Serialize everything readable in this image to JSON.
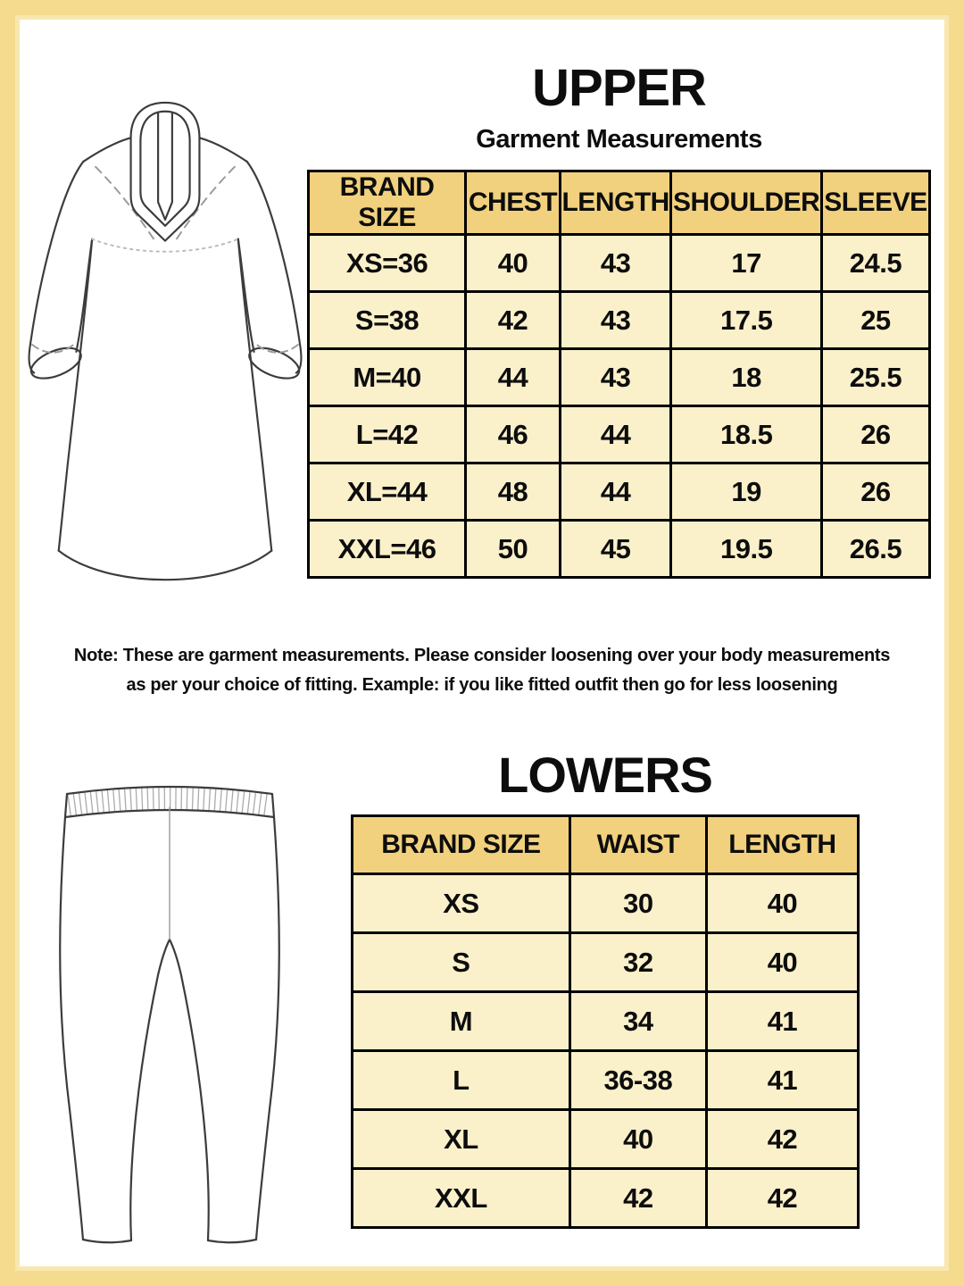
{
  "page": {
    "kind": "garment size chart"
  },
  "colors": {
    "page_bg": "#FFFFFF",
    "page_border": "#F5DB8E",
    "page_border_inner": "#F9E7AF",
    "header_cell": "#F1D17E",
    "body_cell": "#FAF0CA",
    "table_border": "#000000",
    "text": "#0D0D0D"
  },
  "icons": {
    "kurta_illustration": "kurta-line-drawing",
    "pants_illustration": "pants-line-drawing"
  },
  "upper": {
    "title": "UPPER",
    "subtitle": "Garment Measurements",
    "table": {
      "headers": [
        "BRAND SIZE",
        "CHEST",
        "LENGTH",
        "SHOULDER",
        "SLEEVE"
      ],
      "rows": [
        [
          "XS=36",
          "40",
          "43",
          "17",
          "24.5"
        ],
        [
          "S=38",
          "42",
          "43",
          "17.5",
          "25"
        ],
        [
          "M=40",
          "44",
          "43",
          "18",
          "25.5"
        ],
        [
          "L=42",
          "46",
          "44",
          "18.5",
          "26"
        ],
        [
          "XL=44",
          "48",
          "44",
          "19",
          "26"
        ],
        [
          "XXL=46",
          "50",
          "45",
          "19.5",
          "26.5"
        ]
      ]
    },
    "note_line1": "Note: These are garment measurements. Please consider loosening over your body measurements",
    "note_line2": "as per your choice of fitting. Example: if you like fitted outfit then go for less loosening"
  },
  "lowers": {
    "title": "LOWERS",
    "table": {
      "headers": [
        "BRAND SIZE",
        "WAIST",
        "LENGTH"
      ],
      "rows": [
        [
          "XS",
          "30",
          "40"
        ],
        [
          "S",
          "32",
          "40"
        ],
        [
          "M",
          "34",
          "41"
        ],
        [
          "L",
          "36-38",
          "41"
        ],
        [
          "XL",
          "40",
          "42"
        ],
        [
          "XXL",
          "42",
          "42"
        ]
      ]
    }
  }
}
